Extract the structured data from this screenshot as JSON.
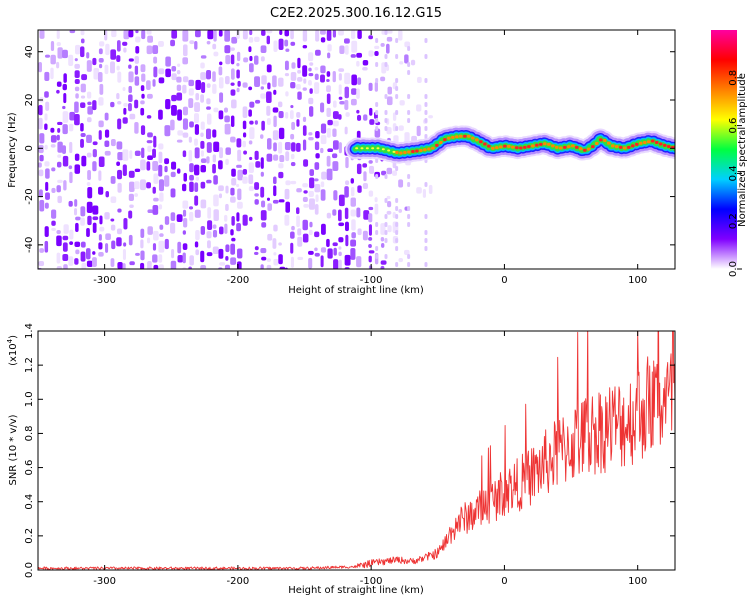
{
  "title": "C2E2.2025.300.16.12.G15",
  "chart_data": [
    {
      "type": "heatmap",
      "title": "C2E2.2025.300.16.12.G15",
      "xlabel": "Height of straight line (km)",
      "ylabel": "Frequency (Hz)",
      "xlim": [
        -350,
        128
      ],
      "ylim": [
        -50,
        49
      ],
      "xticks": [
        -300,
        -200,
        -100,
        0,
        100
      ],
      "yticks": [
        -40,
        -20,
        0,
        20,
        40
      ],
      "noise_region_end_km": -55,
      "ridge": {
        "start_km": -112,
        "x": [
          -112,
          -95,
          -80,
          -65,
          -55,
          -45,
          -35,
          -28,
          -20,
          -10,
          0,
          10,
          20,
          30,
          40,
          50,
          60,
          66,
          72,
          80,
          90,
          100,
          110,
          120,
          128
        ],
        "y": [
          0,
          0,
          -2,
          -1,
          0,
          4,
          5,
          5,
          3,
          0,
          1,
          0,
          1,
          2,
          0,
          1,
          -1,
          1,
          4,
          1,
          0,
          2,
          3,
          1,
          0
        ]
      },
      "colorbar": {
        "label": "Normalized spectral amplitude",
        "range": [
          0.0,
          1.0
        ],
        "ticks": [
          "0.0",
          "0.2",
          "0.4",
          "0.6",
          "0.8"
        ],
        "tick_values": [
          0.0,
          0.2,
          0.4,
          0.6,
          0.8
        ],
        "colors": [
          "#ffffff",
          "#8000ff",
          "#0000ff",
          "#00d0ff",
          "#00ff40",
          "#ffff00",
          "#ff8000",
          "#ff0000",
          "#ff00a0"
        ]
      }
    },
    {
      "type": "line",
      "xlabel": "Height of straight line (km)",
      "ylabel": "SNR (10 * v/v)",
      "multiplier_label": "(x10",
      "multiplier_exp": "4",
      "multiplier_close": ")",
      "xlim": [
        -350,
        128
      ],
      "ylim": [
        0,
        1.4
      ],
      "xticks": [
        -300,
        -200,
        -100,
        0,
        100
      ],
      "yticks": [
        "0.0",
        "0.2",
        "0.4",
        "0.6",
        "0.8",
        "1.0",
        "1.2",
        "1.4"
      ],
      "series": [
        {
          "name": "SNR",
          "color": "#ee3333",
          "x": [
            -350,
            -300,
            -250,
            -200,
            -150,
            -110,
            -100,
            -90,
            -80,
            -70,
            -60,
            -50,
            -45,
            -40,
            -35,
            -30,
            -20,
            -10,
            0,
            10,
            20,
            30,
            40,
            50,
            60,
            70,
            80,
            90,
            100,
            110,
            120,
            128
          ],
          "y": [
            0.01,
            0.01,
            0.01,
            0.01,
            0.01,
            0.02,
            0.04,
            0.05,
            0.06,
            0.05,
            0.07,
            0.1,
            0.15,
            0.22,
            0.28,
            0.3,
            0.35,
            0.4,
            0.46,
            0.5,
            0.55,
            0.62,
            0.68,
            0.74,
            0.78,
            0.82,
            0.85,
            0.86,
            0.92,
            0.98,
            0.98,
            1.0
          ]
        }
      ],
      "peak": {
        "x": 100,
        "y": 1.4
      }
    }
  ]
}
